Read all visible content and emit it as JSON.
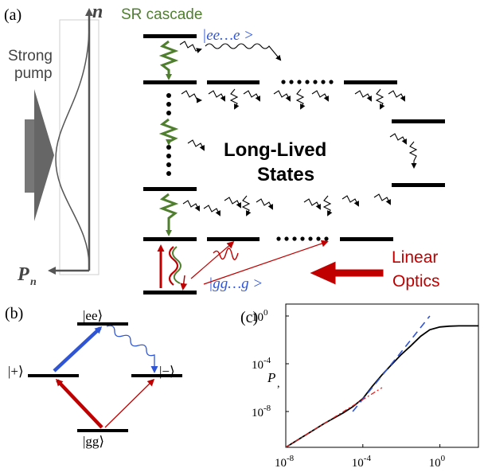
{
  "panel_a": {
    "label": "(a)",
    "pump_line1": "Strong",
    "pump_line2": "pump",
    "axis_n": "n",
    "axis_pn_base": "P",
    "axis_pn_sub": "n",
    "sr_cascade": "SR cascade",
    "top_state": "|ee…e >",
    "bottom_state": "|gg…g >",
    "long_lived_1": "Long-Lived",
    "long_lived_2": "States",
    "linear_optics_1": "Linear",
    "linear_optics_2": "Optics"
  },
  "panel_b": {
    "label": "(b)",
    "ee": "|ee⟩",
    "plus": "|+⟩",
    "minus": "|−⟩",
    "gg": "|gg⟩"
  },
  "panel_c": {
    "label": "(c)",
    "ylabel": "P",
    "ylabel_sub": ","
  },
  "colors": {
    "green": "#4f7f2e",
    "red": "#c00000",
    "blue": "#2f55d4",
    "gray": "#555555"
  },
  "chart_data": {
    "type": "line",
    "xscale": "log",
    "yscale": "log",
    "xlim": [
      1e-08,
      100
    ],
    "ylim": [
      1e-11,
      10
    ],
    "xticks": [
      "10^-8",
      "10^-4",
      "10^0"
    ],
    "yticks": [
      "10^0",
      "10^-4",
      "10^-8"
    ],
    "ylabel": "P",
    "series": [
      {
        "style": "solid-black",
        "x": [
          1e-08,
          1e-07,
          1e-06,
          1e-05,
          3e-05,
          0.0001,
          0.0003,
          0.001,
          0.003,
          0.01,
          0.03,
          0.1,
          0.3,
          1,
          3,
          10,
          100
        ],
        "y": [
          1e-11,
          1e-10,
          1e-09,
          8e-09,
          2.5e-08,
          1.2e-07,
          1.2e-06,
          1.2e-05,
          8e-05,
          0.0006,
          0.003,
          0.02,
          0.07,
          0.12,
          0.14,
          0.15,
          0.15
        ]
      },
      {
        "style": "dashed-blue",
        "x": [
          3e-05,
          0.01,
          0.3
        ],
        "y": [
          1e-08,
          0.001,
          1
        ]
      },
      {
        "style": "dashdot-red",
        "x": [
          1e-08,
          1e-05,
          0.001
        ],
        "y": [
          1e-11,
          1e-08,
          1e-06
        ]
      }
    ]
  }
}
